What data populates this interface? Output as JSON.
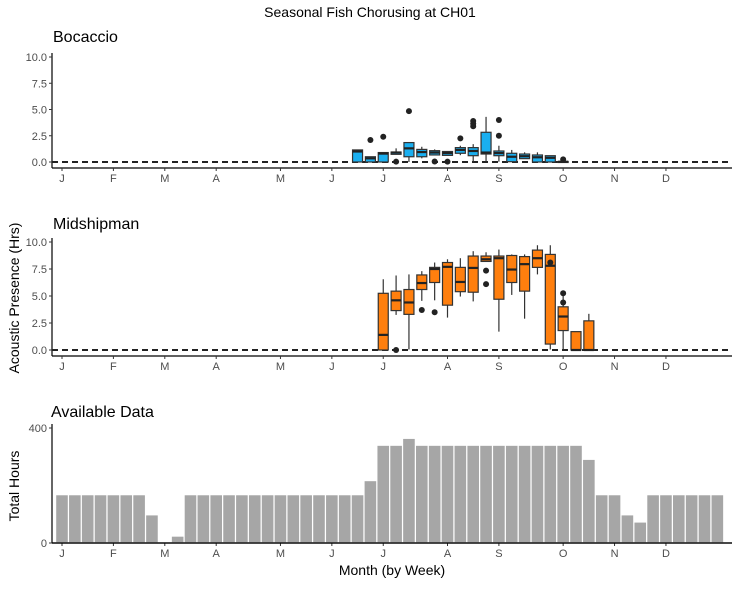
{
  "title": "Seasonal Fish Chorusing at CH01",
  "y_label_presence": "Acoustic Presence (Hrs)",
  "x_label": "Month (by Week)",
  "month_ticks": [
    {
      "label": "J",
      "week": 1
    },
    {
      "label": "F",
      "week": 5
    },
    {
      "label": "M",
      "week": 9
    },
    {
      "label": "A",
      "week": 13
    },
    {
      "label": "M",
      "week": 18
    },
    {
      "label": "J",
      "week": 22
    },
    {
      "label": "J",
      "week": 26
    },
    {
      "label": "A",
      "week": 31
    },
    {
      "label": "S",
      "week": 35
    },
    {
      "label": "O",
      "week": 40
    },
    {
      "label": "N",
      "week": 44
    },
    {
      "label": "D",
      "week": 48
    }
  ],
  "chart_data": [
    {
      "type": "boxplot",
      "title": "Bocaccio",
      "ylim": [
        0,
        10
      ],
      "yticks": [
        "0.0",
        "2.5",
        "5.0",
        "7.5",
        "10.0"
      ],
      "color": "#1aaff0",
      "zero_line": "dashed",
      "boxes": [
        {
          "week": 24,
          "low": 0,
          "q1": 0,
          "median": 1.0,
          "q3": 1.15,
          "high": 1.15,
          "outliers": []
        },
        {
          "week": 25,
          "low": 0,
          "q1": 0,
          "median": 0.35,
          "q3": 0.5,
          "high": 0.5,
          "outliers": [
            2.1
          ]
        },
        {
          "week": 26,
          "low": 0,
          "q1": 0,
          "median": 0.8,
          "q3": 0.9,
          "high": 0.9,
          "outliers": [
            2.4
          ]
        },
        {
          "week": 27,
          "low": 0.73,
          "q1": 0.73,
          "median": 0.9,
          "q3": 0.95,
          "high": 1.3,
          "outliers": [
            0.03
          ]
        },
        {
          "week": 28,
          "low": 0,
          "q1": 0.5,
          "median": 1.3,
          "q3": 1.85,
          "high": 1.85,
          "outliers": [
            4.85
          ]
        },
        {
          "week": 29,
          "low": 0.35,
          "q1": 0.5,
          "median": 0.95,
          "q3": 1.2,
          "high": 1.45,
          "outliers": []
        },
        {
          "week": 30,
          "low": 0.67,
          "q1": 0.67,
          "median": 0.9,
          "q3": 1.08,
          "high": 1.2,
          "outliers": [
            0.05
          ]
        },
        {
          "week": 31,
          "low": 0.63,
          "q1": 0.63,
          "median": 0.85,
          "q3": 1.0,
          "high": 1.0,
          "outliers": [
            0.03
          ]
        },
        {
          "week": 32,
          "low": 0.65,
          "q1": 0.83,
          "median": 1.15,
          "q3": 1.37,
          "high": 1.55,
          "outliers": [
            2.25
          ]
        },
        {
          "week": 33,
          "low": 0.03,
          "q1": 0.6,
          "median": 1.05,
          "q3": 1.37,
          "high": 1.7,
          "outliers": [
            3.4,
            3.65,
            3.9
          ]
        },
        {
          "week": 34,
          "low": 0.03,
          "q1": 0.76,
          "median": 0.9,
          "q3": 2.83,
          "high": 4.3,
          "outliers": []
        },
        {
          "week": 35,
          "low": 0.03,
          "q1": 0.6,
          "median": 0.85,
          "q3": 1.05,
          "high": 1.55,
          "outliers": [
            2.5,
            4.0
          ]
        },
        {
          "week": 36,
          "low": 0.03,
          "q1": 0.03,
          "median": 0.5,
          "q3": 0.83,
          "high": 1.15,
          "outliers": []
        },
        {
          "week": 37,
          "low": 0.32,
          "q1": 0.32,
          "median": 0.55,
          "q3": 0.76,
          "high": 0.92,
          "outliers": []
        },
        {
          "week": 38,
          "low": 0,
          "q1": 0,
          "median": 0.45,
          "q3": 0.67,
          "high": 0.92,
          "outliers": []
        },
        {
          "week": 39,
          "low": 0,
          "q1": 0,
          "median": 0.4,
          "q3": 0.6,
          "high": 0.6,
          "outliers": []
        },
        {
          "week": 40,
          "low": 0,
          "q1": 0,
          "median": 0.02,
          "q3": 0.05,
          "high": 0.05,
          "outliers": [
            0.25
          ]
        }
      ]
    },
    {
      "type": "boxplot",
      "title": "Midshipman",
      "ylim": [
        0,
        10
      ],
      "yticks": [
        "0.0",
        "2.5",
        "5.0",
        "7.5",
        "10.0"
      ],
      "color": "#ff7f0e",
      "zero_line": "dashed",
      "boxes": [
        {
          "week": 26,
          "low": 0,
          "q1": 0,
          "median": 1.4,
          "q3": 5.25,
          "high": 6.55,
          "outliers": []
        },
        {
          "week": 27,
          "low": 3.25,
          "q1": 3.65,
          "median": 4.6,
          "q3": 5.45,
          "high": 6.9,
          "outliers": [
            0
          ]
        },
        {
          "week": 28,
          "low": 0.05,
          "q1": 3.3,
          "median": 4.4,
          "q3": 5.6,
          "high": 7.0,
          "outliers": []
        },
        {
          "week": 29,
          "low": 4.55,
          "q1": 5.6,
          "median": 6.2,
          "q3": 6.95,
          "high": 7.3,
          "outliers": [
            3.7
          ]
        },
        {
          "week": 30,
          "low": 4.6,
          "q1": 6.25,
          "median": 7.5,
          "q3": 7.65,
          "high": 8.1,
          "outliers": [
            3.5
          ]
        },
        {
          "week": 31,
          "low": 3.0,
          "q1": 4.15,
          "median": 7.7,
          "q3": 8.1,
          "high": 8.4,
          "outliers": []
        },
        {
          "week": 32,
          "low": 4.95,
          "q1": 5.4,
          "median": 6.3,
          "q3": 7.65,
          "high": 8.5,
          "outliers": []
        },
        {
          "week": 33,
          "low": 4.5,
          "q1": 5.35,
          "median": 7.6,
          "q3": 8.7,
          "high": 9.15,
          "outliers": []
        },
        {
          "week": 34,
          "low": 8.2,
          "q1": 8.2,
          "median": 8.4,
          "q3": 8.7,
          "high": 9.05,
          "outliers": [
            7.35,
            6.1
          ]
        },
        {
          "week": 35,
          "low": 1.7,
          "q1": 4.7,
          "median": 8.5,
          "q3": 8.7,
          "high": 9.3,
          "outliers": []
        },
        {
          "week": 36,
          "low": 5.1,
          "q1": 6.25,
          "median": 7.45,
          "q3": 8.75,
          "high": 8.85,
          "outliers": []
        },
        {
          "week": 37,
          "low": 2.9,
          "q1": 5.45,
          "median": 7.95,
          "q3": 8.65,
          "high": 8.85,
          "outliers": []
        },
        {
          "week": 38,
          "low": 7.0,
          "q1": 7.65,
          "median": 8.5,
          "q3": 9.25,
          "high": 9.7,
          "outliers": []
        },
        {
          "week": 39,
          "low": 0.05,
          "q1": 0.55,
          "median": 7.8,
          "q3": 8.85,
          "high": 9.7,
          "outliers": [
            8.1
          ]
        },
        {
          "week": 40,
          "low": 0.05,
          "q1": 1.8,
          "median": 3.1,
          "q3": 4.0,
          "high": 5.4,
          "outliers": [
            5.25,
            4.4
          ]
        },
        {
          "week": 41,
          "low": 0,
          "q1": 0,
          "median": 0,
          "q3": 1.7,
          "high": 1.7,
          "outliers": []
        },
        {
          "week": 42,
          "low": 0,
          "q1": 0,
          "median": 0,
          "q3": 2.7,
          "high": 3.35,
          "outliers": []
        }
      ]
    },
    {
      "type": "bar",
      "title": "Available Data",
      "ylabel": "Total Hours",
      "ylim": [
        0,
        400
      ],
      "yticks": [
        "0",
        "400"
      ],
      "color": "#a6a6a6",
      "values": [
        166,
        166,
        166,
        166,
        166,
        166,
        166,
        96,
        0,
        22,
        166,
        166,
        166,
        166,
        166,
        166,
        166,
        166,
        166,
        166,
        166,
        166,
        166,
        166,
        215,
        338,
        338,
        362,
        338,
        338,
        338,
        338,
        338,
        338,
        338,
        338,
        338,
        338,
        338,
        338,
        338,
        289,
        166,
        166,
        96,
        71,
        166,
        166,
        166,
        166,
        166,
        166
      ]
    }
  ]
}
